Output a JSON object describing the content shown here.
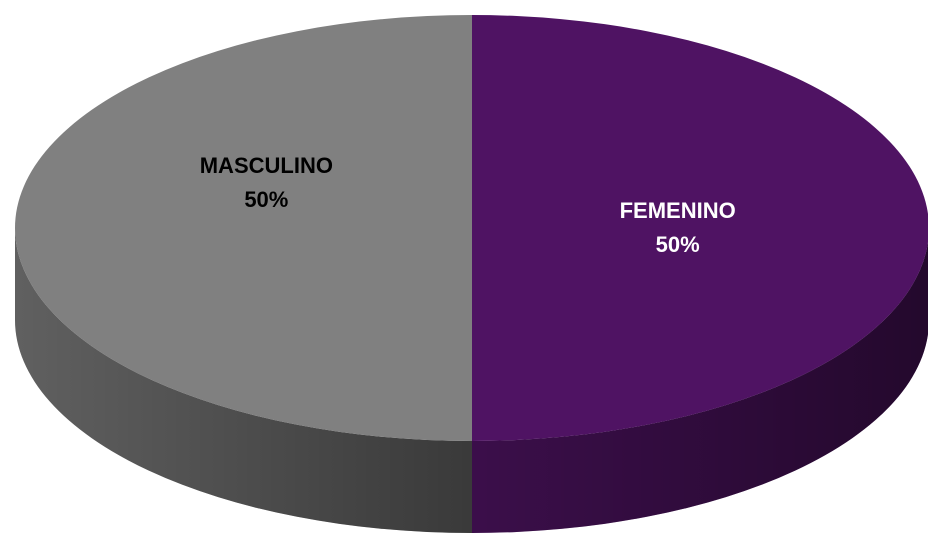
{
  "chart_data": {
    "type": "pie3d",
    "categories": [
      "FEMENINO",
      "MASCULINO"
    ],
    "values": [
      50,
      50
    ],
    "value_labels": [
      "50%",
      "50%"
    ],
    "colors": [
      "#4f1363",
      "#808080"
    ]
  }
}
